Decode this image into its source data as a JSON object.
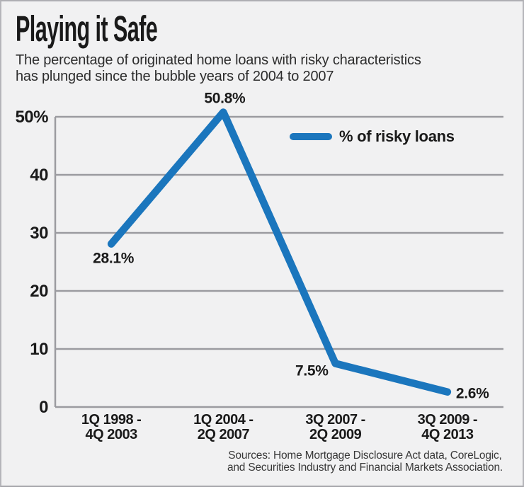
{
  "header": {
    "title": "Playing it Safe",
    "subtitle": "The percentage of originated home loans with risky characteristics\nhas plunged since the bubble years of 2004 to 2007"
  },
  "legend": {
    "label": "% of risky loans"
  },
  "sources": "Sources: Home Mortgage Disclosure Act data, CoreLogic,\nand Securities Industry and Financial Markets Association.",
  "colors": {
    "line": "#1b76bd",
    "grid": "#9b9ba0",
    "background": "#f1f1f2",
    "border": "#b5b5ba",
    "text": "#1a1a1a"
  },
  "chart_data": {
    "type": "line",
    "title": "Playing it Safe",
    "subtitle": "The percentage of originated home loans with risky characteristics has plunged since the bubble years of 2004 to 2007",
    "categories": [
      "1Q 1998 -\n4Q 2003",
      "1Q 2004 -\n2Q 2007",
      "3Q 2007 -\n2Q 2009",
      "3Q 2009 -\n4Q 2013"
    ],
    "series": [
      {
        "name": "% of risky loans",
        "values": [
          28.1,
          50.8,
          7.5,
          2.6
        ]
      }
    ],
    "data_labels": [
      "28.1%",
      "50.8%",
      "7.5%",
      "2.6%"
    ],
    "label_positions": [
      "below",
      "above",
      "left",
      "right"
    ],
    "y_ticks": [
      {
        "value": 0,
        "label": "0"
      },
      {
        "value": 10,
        "label": "10"
      },
      {
        "value": 20,
        "label": "20"
      },
      {
        "value": 30,
        "label": "30"
      },
      {
        "value": 40,
        "label": "40"
      },
      {
        "value": 50,
        "label": "50%"
      }
    ],
    "ylim": [
      0,
      50
    ],
    "grid": "horizontal",
    "legend_position": "top-right-inside",
    "xlabel": "",
    "ylabel": ""
  }
}
